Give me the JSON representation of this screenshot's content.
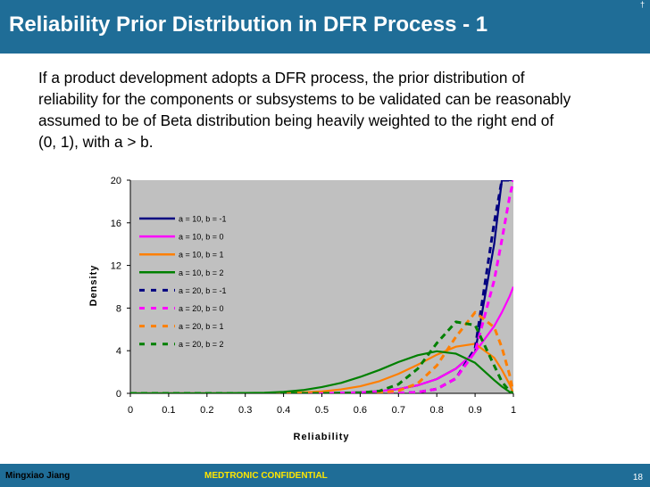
{
  "slide": {
    "title": "Reliability Prior Distribution in DFR Process - 1",
    "intro": "If a product development adopts a DFR process, the prior distribution of reliability for the components or subsystems to be validated can be reasonably assumed to be of Beta distribution being heavily weighted to the right end of (0, 1), with a > b.",
    "footer_author": "Mingxiao Jiang",
    "footer_confidential": "MEDTRONIC CONFIDENTIAL",
    "page_number": "18",
    "corner_mark": "†"
  },
  "chart_data": {
    "type": "line",
    "xlabel": "Reliability",
    "ylabel": "Density",
    "xlim": [
      0,
      1
    ],
    "ylim": [
      0,
      20
    ],
    "xticks": [
      0,
      0.1,
      0.2,
      0.3,
      0.4,
      0.5,
      0.6,
      0.7,
      0.8,
      0.9,
      1
    ],
    "xtick_labels": [
      "0",
      "0.1",
      "0.2",
      "0.3",
      "0.4",
      "0.5",
      "0.6",
      "0.7",
      "0.8",
      "0.9",
      "1"
    ],
    "yticks": [
      0,
      4,
      8,
      12,
      16,
      20
    ],
    "ytick_labels": [
      "0",
      "4",
      "8",
      "12",
      "16",
      "20"
    ],
    "plot_background": "#c0c0c0",
    "legend_position": "top-left",
    "grid": false,
    "x": [
      0,
      0.05,
      0.1,
      0.15,
      0.2,
      0.25,
      0.3,
      0.35,
      0.4,
      0.45,
      0.5,
      0.55,
      0.6,
      0.65,
      0.7,
      0.75,
      0.8,
      0.85,
      0.9,
      0.95,
      0.97,
      0.99,
      1
    ],
    "series": [
      {
        "name": "a = 10, b = -1",
        "color": "#000080",
        "dash": "solid",
        "values": [
          0,
          0,
          0,
          0,
          0,
          0,
          0,
          0,
          0,
          0.01,
          0.02,
          0.05,
          0.1,
          0.2,
          0.4,
          0.75,
          1.34,
          2.32,
          3.87,
          14,
          20,
          20,
          20
        ]
      },
      {
        "name": "a = 10, b = 0",
        "color": "#ff00ff",
        "dash": "solid",
        "values": [
          0,
          0,
          0,
          0,
          0,
          0,
          0,
          0,
          0,
          0.03,
          0.02,
          0.05,
          0.1,
          0.2,
          0.4,
          0.75,
          1.34,
          2.32,
          3.87,
          6.3,
          7.6,
          9.1,
          10
        ]
      },
      {
        "name": "a = 10, b = 1",
        "color": "#ff7f00",
        "dash": "solid",
        "values": [
          0,
          0,
          0,
          0,
          0,
          0,
          0,
          0.01,
          0.03,
          0.08,
          0.18,
          0.37,
          0.66,
          1.14,
          1.83,
          2.68,
          3.62,
          4.38,
          4.65,
          3.34,
          2.2,
          0.85,
          0
        ]
      },
      {
        "name": "a = 10, b = 2",
        "color": "#008000",
        "dash": "solid",
        "values": [
          0,
          0,
          0,
          0,
          0,
          0.01,
          0.03,
          0.06,
          0.14,
          0.3,
          0.59,
          0.98,
          1.54,
          2.19,
          2.94,
          3.57,
          3.95,
          3.72,
          2.86,
          1.24,
          0.64,
          0.13,
          0
        ]
      },
      {
        "name": "a = 20, b = -1",
        "color": "#000080",
        "dash": "dashed",
        "values": [
          0,
          0,
          0,
          0,
          0,
          0,
          0,
          0,
          0,
          0,
          0,
          0,
          0,
          0,
          0.02,
          0.1,
          0.4,
          1.4,
          4.2,
          16,
          20,
          20,
          20
        ]
      },
      {
        "name": "a = 20, b = 0",
        "color": "#ff00ff",
        "dash": "dashed",
        "values": [
          0,
          0,
          0,
          0,
          0,
          0,
          0,
          0,
          0,
          0,
          0,
          0,
          0,
          0,
          0.02,
          0.1,
          0.4,
          1.4,
          3.9,
          10.6,
          14.4,
          18.4,
          20
        ]
      },
      {
        "name": "a = 20, b = 1",
        "color": "#ff7f00",
        "dash": "dashed",
        "values": [
          0,
          0,
          0,
          0,
          0,
          0,
          0,
          0,
          0,
          0,
          0,
          0,
          0.01,
          0.05,
          0.25,
          0.93,
          2.6,
          5.3,
          7.6,
          6.2,
          4.3,
          1.75,
          0
        ]
      },
      {
        "name": "a = 20, b = 2",
        "color": "#008000",
        "dash": "dashed",
        "values": [
          0,
          0,
          0,
          0,
          0,
          0,
          0,
          0,
          0,
          0,
          0,
          0.02,
          0.06,
          0.22,
          0.85,
          2.3,
          4.7,
          6.7,
          6.4,
          2.6,
          1.1,
          0.2,
          0
        ]
      }
    ]
  }
}
